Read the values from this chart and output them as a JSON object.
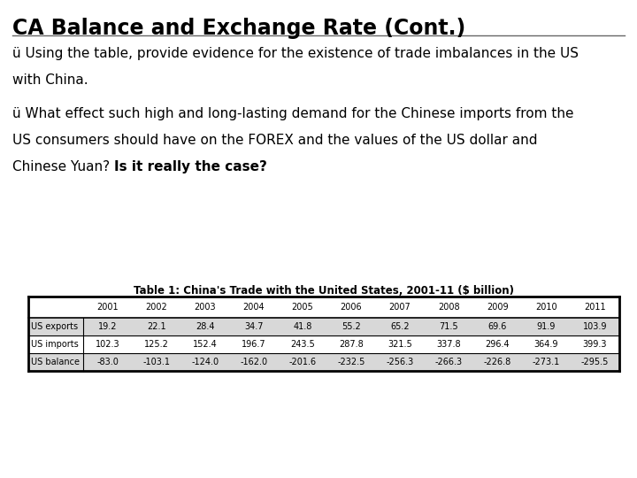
{
  "title": "CA Balance and Exchange Rate (Cont.)",
  "bullet1_line1": "ü Using the table, provide evidence for the existence of trade imbalances in the US",
  "bullet1_line2": "with China.",
  "bullet2_line1": "ü What effect such high and long-lasting demand for the Chinese imports from the",
  "bullet2_line2": "US consumers should have on the FOREX and the values of the US dollar and",
  "bullet2_line3_normal": "Chinese Yuan? ",
  "bullet2_line3_bold": "Is it really the case?",
  "table_title": "Table 1: China's Trade with the United States, 2001-11 ($ billion)",
  "years": [
    "2001",
    "2002",
    "2003",
    "2004",
    "2005",
    "2006",
    "2007",
    "2008",
    "2009",
    "2010",
    "2011"
  ],
  "rows": [
    {
      "label": "US exports",
      "values": [
        "19.2",
        "22.1",
        "28.4",
        "34.7",
        "41.8",
        "55.2",
        "65.2",
        "71.5",
        "69.6",
        "91.9",
        "103.9"
      ],
      "shaded": true
    },
    {
      "label": "US imports",
      "values": [
        "102.3",
        "125.2",
        "152.4",
        "196.7",
        "243.5",
        "287.8",
        "321.5",
        "337.8",
        "296.4",
        "364.9",
        "399.3"
      ],
      "shaded": false
    },
    {
      "label": "US balance",
      "values": [
        "-83.0",
        "-103.1",
        "-124.0",
        "-162.0",
        "-201.6",
        "-232.5",
        "-256.3",
        "-266.3",
        "-226.8",
        "-273.1",
        "-295.5"
      ],
      "shaded": true
    }
  ],
  "bg_color": "#ffffff",
  "title_color": "#000000",
  "shaded_row_color": "#d8d8d8",
  "border_color": "#000000",
  "title_fontsize": 17,
  "body_fontsize": 11,
  "table_title_fontsize": 8.5,
  "table_body_fontsize": 7.0
}
